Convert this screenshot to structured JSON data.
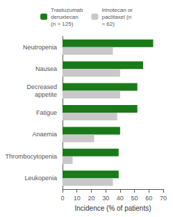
{
  "chart_data": {
    "type": "bar",
    "orientation": "horizontal",
    "categories": [
      "Neutropenia",
      "Nausea",
      "Decreased\nappetite",
      "Fatigue",
      "Anaemia",
      "Thrombocytopenia",
      "Leukopenia"
    ],
    "series": [
      {
        "name": "Trastuzumab\nderuxtecan\n(n = 125)",
        "color": "#1a7a1a",
        "values": [
          63,
          56,
          52,
          52,
          40,
          39,
          39
        ]
      },
      {
        "name": "Irinotecan or\npaclitaxel (n\n= 62)",
        "color": "#c8c8c8",
        "values": [
          35,
          40,
          40,
          38,
          22,
          7,
          35
        ]
      }
    ],
    "xlabel": "Incidence (% of patients)",
    "xlim": [
      0,
      70
    ],
    "xticks": [
      0,
      10,
      20,
      30,
      40,
      50,
      60,
      70
    ],
    "grid": false,
    "legend": "top"
  }
}
